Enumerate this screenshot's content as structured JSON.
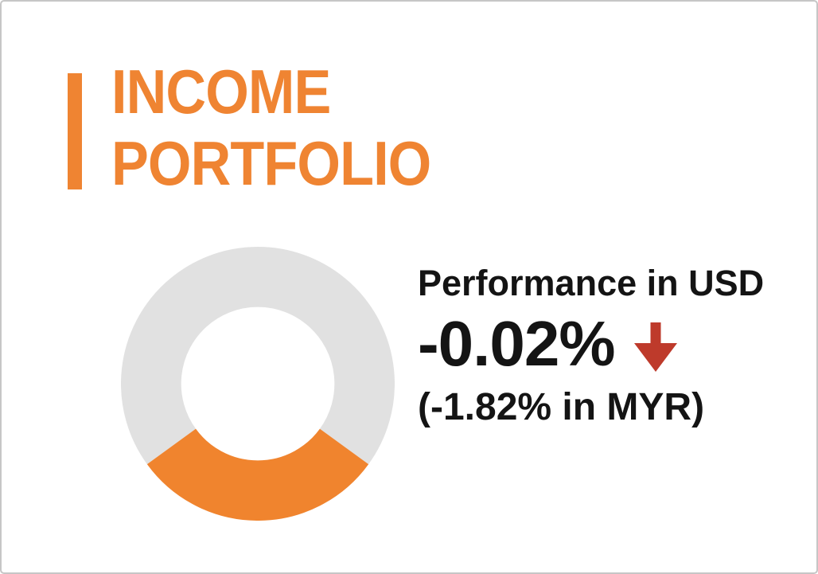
{
  "slide": {
    "title": {
      "line1": "INCOME",
      "line2": "PORTFOLIO"
    }
  },
  "performance": {
    "heading": "Performance in USD",
    "usd_value": "-0.02%",
    "direction": "down",
    "myr_value": "(-1.82% in MYR)"
  },
  "colors": {
    "accent_orange": "#EF8432",
    "donut_orange": "#F0842E",
    "donut_gray": "#E1E1E1",
    "arrow_red": "#BE3A2B",
    "text_dark": "#141414",
    "border_gray": "#C6C6C6",
    "background": "#FFFFFF"
  },
  "chart_data": {
    "type": "pie",
    "subtype": "donut",
    "series": [
      {
        "name": "gray-remainder",
        "value": 70,
        "color": "#E1E1E1"
      },
      {
        "name": "orange-segment",
        "value": 30,
        "color": "#F0842E"
      }
    ],
    "start_angle_deg": 234,
    "inner_radius_ratio": 0.56,
    "legend": "none",
    "data_labels": "none",
    "annotations": [
      "Performance in USD",
      "-0.02% ↓",
      "(-1.82% in MYR)"
    ]
  }
}
